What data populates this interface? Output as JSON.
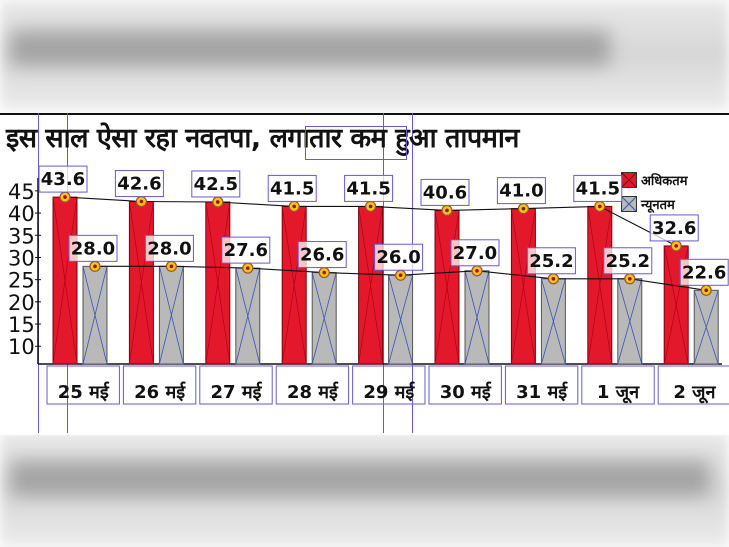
{
  "title": "इस साल ऐसा रहा नवतपा, लगातार कम हुआ तापमान",
  "legend": {
    "max_label": "अधिकतम",
    "min_label": "न्यूनतम"
  },
  "colors": {
    "max_bar": "#e3192b",
    "min_bar": "#b9b9b9",
    "marker": "#f0c419",
    "line": "#111111"
  },
  "chart_data": {
    "type": "bar",
    "categories": [
      "25 मई",
      "26 मई",
      "27 मई",
      "28 मई",
      "29 मई",
      "30 मई",
      "31 मई",
      "1 जून",
      "2 जून"
    ],
    "series": [
      {
        "name": "अधिकतम",
        "values": [
          43.6,
          42.6,
          42.5,
          41.5,
          41.5,
          40.6,
          41.0,
          41.5,
          32.6
        ],
        "labels": [
          "43.6",
          "42.6",
          "42.5",
          "41.5",
          "41.5",
          "40.6",
          "41.0",
          "41.5",
          "32.6"
        ]
      },
      {
        "name": "न्यूनतम",
        "values": [
          28.0,
          28.0,
          27.6,
          26.6,
          26.0,
          27.0,
          25.2,
          25.2,
          22.6
        ],
        "labels": [
          "28.0",
          "28.0",
          "27.6",
          "26.6",
          "26.0",
          "27.0",
          "25.2",
          "25.2",
          "22.6"
        ]
      }
    ],
    "yticks": [
      45,
      40,
      35,
      30,
      25,
      20,
      15,
      10
    ],
    "ylim": [
      6,
      47
    ],
    "grid": false,
    "legend_position": "top-right",
    "overlay_lines": true
  }
}
